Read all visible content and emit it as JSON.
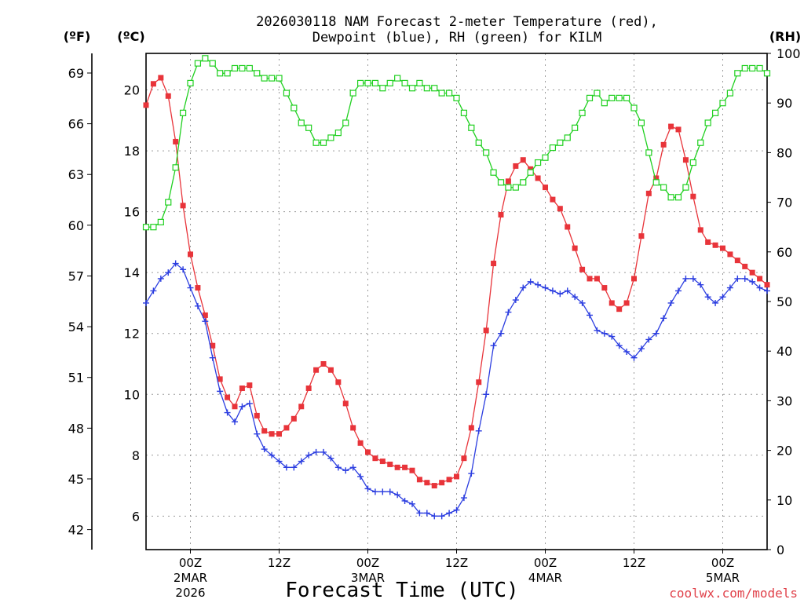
{
  "chart_data": {
    "type": "line",
    "title_line1": "2026030118 NAM Forecast 2-meter Temperature (red),",
    "title_line2": "Dewpoint (blue), RH (green) for KILM",
    "xlabel": "Forecast Time (UTC)",
    "credit": "coolwx.com/models",
    "units": {
      "fahrenheit": "(ºF)",
      "celsius": "(ºC)",
      "rh": "(RH)"
    },
    "x_range_hours": [
      0,
      84
    ],
    "x_ticks": [
      {
        "hour": 6,
        "label": "00Z",
        "date": "2MAR",
        "year": "2026"
      },
      {
        "hour": 18,
        "label": "12Z",
        "date": "",
        "year": ""
      },
      {
        "hour": 30,
        "label": "00Z",
        "date": "3MAR",
        "year": ""
      },
      {
        "hour": 42,
        "label": "12Z",
        "date": "",
        "year": ""
      },
      {
        "hour": 54,
        "label": "00Z",
        "date": "4MAR",
        "year": ""
      },
      {
        "hour": 66,
        "label": "12Z",
        "date": "",
        "year": ""
      },
      {
        "hour": 78,
        "label": "00Z",
        "date": "5MAR",
        "year": ""
      }
    ],
    "yleft_celsius": {
      "range": [
        4.9,
        21.2
      ],
      "ticks": [
        6,
        8,
        10,
        12,
        14,
        16,
        18,
        20
      ],
      "labels": [
        "6",
        "8",
        "10",
        "12",
        "14",
        "16",
        "18",
        "20"
      ]
    },
    "yleft_fahrenheit": {
      "ticks": [
        42,
        45,
        48,
        51,
        54,
        57,
        60,
        63,
        66,
        69
      ],
      "labels": [
        "42",
        "45",
        "48",
        "51",
        "54",
        "57",
        "60",
        "63",
        "66",
        "69"
      ]
    },
    "yright_rh": {
      "range": [
        0,
        100
      ],
      "ticks": [
        0,
        10,
        20,
        30,
        40,
        50,
        60,
        70,
        80,
        90,
        100
      ],
      "labels": [
        "0",
        "10",
        "20",
        "30",
        "40",
        "50",
        "60",
        "70",
        "80",
        "90",
        "100"
      ]
    },
    "series": [
      {
        "name": "Temperature",
        "color": "#e8343a",
        "marker": "filled-square",
        "axis": "celsius",
        "values": [
          19.5,
          20.2,
          20.4,
          19.8,
          18.3,
          16.2,
          14.6,
          13.5,
          12.6,
          11.6,
          10.5,
          9.9,
          9.6,
          10.2,
          10.3,
          9.3,
          8.8,
          8.7,
          8.7,
          8.9,
          9.2,
          9.6,
          10.2,
          10.8,
          11.0,
          10.8,
          10.4,
          9.7,
          8.9,
          8.4,
          8.1,
          7.9,
          7.8,
          7.7,
          7.6,
          7.6,
          7.5,
          7.2,
          7.1,
          7.0,
          7.1,
          7.2,
          7.3,
          7.9,
          8.9,
          10.4,
          12.1,
          14.3,
          15.9,
          17.0,
          17.5,
          17.7,
          17.4,
          17.1,
          16.8,
          16.4,
          16.1,
          15.5,
          14.8,
          14.1,
          13.8,
          13.8,
          13.5,
          13.0,
          12.8,
          13.0,
          13.8,
          15.2,
          16.6,
          17.1,
          18.2,
          18.8,
          18.7,
          17.7,
          16.5,
          15.4,
          15.0,
          14.9,
          14.8,
          14.6,
          14.4,
          14.2,
          14.0,
          13.8,
          13.6
        ]
      },
      {
        "name": "Dewpoint",
        "color": "#2b3de0",
        "marker": "plus",
        "axis": "celsius",
        "values": [
          13.0,
          13.4,
          13.8,
          14.0,
          14.3,
          14.1,
          13.5,
          12.9,
          12.4,
          11.2,
          10.1,
          9.4,
          9.1,
          9.6,
          9.7,
          8.7,
          8.2,
          8.0,
          7.8,
          7.6,
          7.6,
          7.8,
          8.0,
          8.1,
          8.1,
          7.9,
          7.6,
          7.5,
          7.6,
          7.3,
          6.9,
          6.8,
          6.8,
          6.8,
          6.7,
          6.5,
          6.4,
          6.1,
          6.1,
          6.0,
          6.0,
          6.1,
          6.2,
          6.6,
          7.4,
          8.8,
          10.0,
          11.6,
          12.0,
          12.7,
          13.1,
          13.5,
          13.7,
          13.6,
          13.5,
          13.4,
          13.3,
          13.4,
          13.2,
          13.0,
          12.6,
          12.1,
          12.0,
          11.9,
          11.6,
          11.4,
          11.2,
          11.5,
          11.8,
          12.0,
          12.5,
          13.0,
          13.4,
          13.8,
          13.8,
          13.6,
          13.2,
          13.0,
          13.2,
          13.5,
          13.8,
          13.8,
          13.7,
          13.5,
          13.4
        ]
      },
      {
        "name": "RH",
        "color": "#20d020",
        "marker": "open-square",
        "axis": "rh",
        "values": [
          65,
          65,
          66,
          70,
          77,
          88,
          94,
          98,
          99,
          98,
          96,
          96,
          97,
          97,
          97,
          96,
          95,
          95,
          95,
          92,
          89,
          86,
          85,
          82,
          82,
          83,
          84,
          86,
          92,
          94,
          94,
          94,
          93,
          94,
          95,
          94,
          93,
          94,
          93,
          93,
          92,
          92,
          91,
          88,
          85,
          82,
          80,
          76,
          74,
          73,
          73,
          74,
          76,
          78,
          79,
          81,
          82,
          83,
          85,
          88,
          91,
          92,
          90,
          91,
          91,
          91,
          89,
          86,
          80,
          74,
          73,
          71,
          71,
          73,
          78,
          82,
          86,
          88,
          90,
          92,
          96,
          97,
          97,
          97,
          96
        ]
      }
    ]
  }
}
